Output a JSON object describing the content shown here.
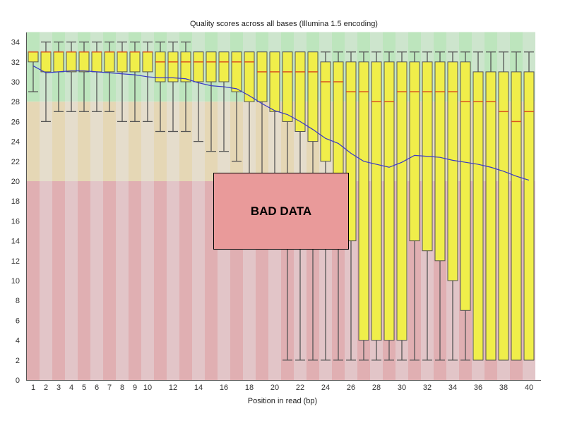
{
  "chart_data": {
    "type": "box",
    "title": "Quality scores across all bases (Illumina 1.5 encoding)",
    "xlabel": "Position in read (bp)",
    "ylabel": "",
    "ylim": [
      0,
      35
    ],
    "yticks": [
      0,
      2,
      4,
      6,
      8,
      10,
      12,
      14,
      16,
      18,
      20,
      22,
      24,
      26,
      28,
      30,
      32,
      34
    ],
    "xtick_labels": [
      "1",
      "2",
      "3",
      "4",
      "5",
      "6",
      "7",
      "8",
      "9",
      "10",
      "12",
      "14",
      "16",
      "18",
      "20",
      "22",
      "24",
      "26",
      "28",
      "30",
      "32",
      "34",
      "36",
      "38",
      "40"
    ],
    "quality_zones": [
      {
        "name": "good",
        "from": 28,
        "to": 35,
        "color_dark": "#bde5bd",
        "color_light": "#cde5cd"
      },
      {
        "name": "reasonable",
        "from": 20,
        "to": 28,
        "color_dark": "#e5d7b5",
        "color_light": "#e5ddcc"
      },
      {
        "name": "poor",
        "from": 0,
        "to": 20,
        "color_dark": "#e0afb2",
        "color_light": "#e2c5c8"
      }
    ],
    "box_color": "#f0ee4a",
    "median_color": "#d9541e",
    "mean_color": "#3838c8",
    "positions": [
      1,
      2,
      3,
      4,
      5,
      6,
      7,
      8,
      9,
      10,
      11,
      12,
      13,
      14,
      15,
      16,
      17,
      18,
      19,
      20,
      21,
      22,
      23,
      24,
      25,
      26,
      27,
      28,
      29,
      30,
      31,
      32,
      33,
      34,
      35,
      36,
      37,
      38,
      39,
      40
    ],
    "lower_whisker": [
      29,
      26,
      27,
      27,
      27,
      27,
      27,
      26,
      26,
      26,
      25,
      25,
      25,
      24,
      23,
      23,
      22,
      15,
      15,
      15,
      2,
      2,
      2,
      2,
      2,
      2,
      2,
      2,
      2,
      2,
      2,
      2,
      2,
      2,
      2,
      2,
      2,
      2,
      2,
      2
    ],
    "q1": [
      32,
      31,
      31,
      31,
      31,
      31,
      31,
      31,
      31,
      31,
      30,
      30,
      30,
      30,
      30,
      30,
      29,
      28,
      28,
      27,
      26,
      25,
      24,
      22,
      16,
      14,
      4,
      4,
      4,
      4,
      14,
      13,
      12,
      10,
      7,
      2,
      2,
      2,
      2,
      2
    ],
    "median": [
      33,
      33,
      33,
      33,
      33,
      33,
      33,
      33,
      33,
      33,
      32,
      32,
      32,
      32,
      32,
      32,
      32,
      32,
      31,
      31,
      31,
      31,
      31,
      30,
      30,
      29,
      29,
      28,
      28,
      29,
      29,
      29,
      29,
      29,
      28,
      28,
      28,
      27,
      26,
      27
    ],
    "q3": [
      33,
      33,
      33,
      33,
      33,
      33,
      33,
      33,
      33,
      33,
      33,
      33,
      33,
      33,
      33,
      33,
      33,
      33,
      33,
      33,
      33,
      33,
      33,
      32,
      32,
      32,
      32,
      32,
      32,
      32,
      32,
      32,
      32,
      32,
      32,
      31,
      31,
      31,
      31,
      31
    ],
    "upper_whisker": [
      33,
      34,
      34,
      34,
      34,
      34,
      34,
      34,
      34,
      34,
      34,
      34,
      34,
      33,
      33,
      33,
      33,
      33,
      33,
      33,
      33,
      33,
      33,
      33,
      33,
      33,
      33,
      33,
      33,
      33,
      33,
      33,
      33,
      33,
      33,
      33,
      33,
      33,
      33,
      33
    ],
    "mean": [
      31.6,
      30.9,
      31.0,
      31.1,
      31.1,
      31.0,
      30.9,
      30.8,
      30.7,
      30.5,
      30.4,
      30.4,
      30.3,
      29.9,
      29.6,
      29.5,
      29.3,
      28.6,
      27.8,
      27.1,
      26.7,
      26.0,
      25.2,
      24.3,
      23.8,
      22.8,
      22.0,
      21.7,
      21.4,
      21.9,
      22.6,
      22.5,
      22.4,
      22.1,
      21.9,
      21.7,
      21.4,
      21.0,
      20.5,
      20.1
    ],
    "annotation": "BAD DATA"
  }
}
